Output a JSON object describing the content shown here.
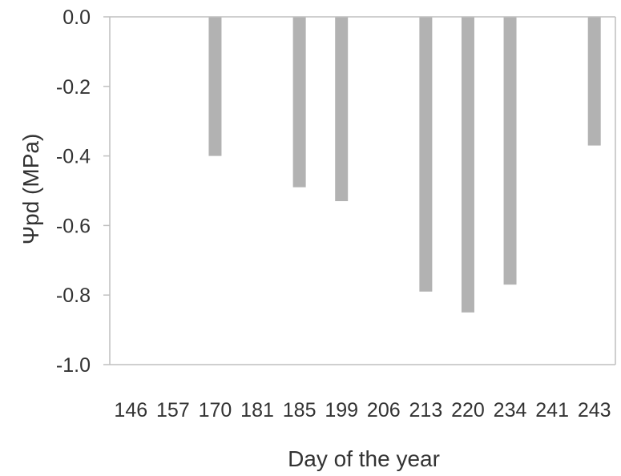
{
  "chart_data": {
    "type": "bar",
    "categories": [
      "146",
      "157",
      "170",
      "181",
      "185",
      "199",
      "206",
      "213",
      "220",
      "234",
      "241",
      "243"
    ],
    "values": [
      null,
      null,
      -0.4,
      null,
      -0.49,
      -0.53,
      null,
      -0.79,
      -0.85,
      -0.77,
      null,
      -0.37
    ],
    "xlabel": "Day of the year",
    "ylabel": "Ψpd  (MPa)",
    "ylim": [
      -1.0,
      0.0
    ],
    "yticks": [
      "0.0",
      "-0.2",
      "-0.4",
      "-0.6",
      "-0.8",
      "-1.0"
    ],
    "ytick_values": [
      0.0,
      -0.2,
      -0.4,
      -0.6,
      -0.8,
      -1.0
    ],
    "grid": false,
    "bar_color": "#b2b2b2",
    "axis_color": "#bfbfbf",
    "text_color": "#333333"
  }
}
